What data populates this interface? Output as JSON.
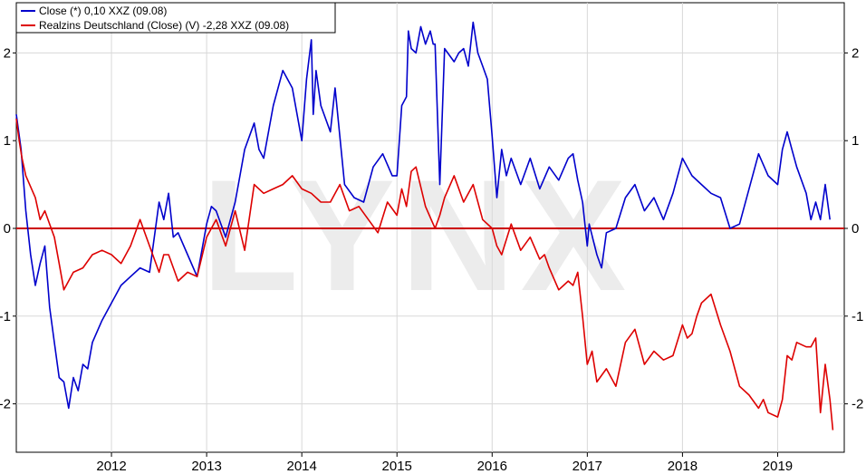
{
  "watermark": "LYNX",
  "colors": {
    "series_blue": "#0000cc",
    "series_red": "#dd0000",
    "zero_line": "#cc0000"
  },
  "chart_data": {
    "type": "line",
    "title": "",
    "xlabel": "",
    "ylabel": "",
    "xlim": [
      2011.0,
      2019.7
    ],
    "ylim": [
      -2.5,
      2.5
    ],
    "grid": true,
    "legend_position": "top-left",
    "x_ticks": [
      {
        "label": "2012",
        "value": 2012
      },
      {
        "label": "2013",
        "value": 2013
      },
      {
        "label": "2014",
        "value": 2014
      },
      {
        "label": "2015",
        "value": 2015
      },
      {
        "label": "2016",
        "value": 2016
      },
      {
        "label": "2017",
        "value": 2017
      },
      {
        "label": "2018",
        "value": 2018
      },
      {
        "label": "2019",
        "value": 2019
      }
    ],
    "y_ticks": [
      {
        "label": "2",
        "value": 2
      },
      {
        "label": "1",
        "value": 1
      },
      {
        "label": "0",
        "value": 0
      },
      {
        "label": "-1",
        "value": -1
      },
      {
        "label": "-2",
        "value": -2
      }
    ],
    "series": [
      {
        "name": "Close (*) 0,10 XXZ (09.08)",
        "color": "#0000cc",
        "x": [
          2011.0,
          2011.05,
          2011.1,
          2011.15,
          2011.2,
          2011.25,
          2011.3,
          2011.35,
          2011.4,
          2011.45,
          2011.5,
          2011.55,
          2011.6,
          2011.65,
          2011.7,
          2011.75,
          2011.8,
          2011.9,
          2012.0,
          2012.1,
          2012.2,
          2012.3,
          2012.4,
          2012.5,
          2012.55,
          2012.6,
          2012.65,
          2012.7,
          2012.8,
          2012.9,
          2013.0,
          2013.05,
          2013.1,
          2013.2,
          2013.3,
          2013.35,
          2013.4,
          2013.5,
          2013.55,
          2013.6,
          2013.7,
          2013.8,
          2013.9,
          2014.0,
          2014.05,
          2014.1,
          2014.12,
          2014.15,
          2014.2,
          2014.3,
          2014.35,
          2014.45,
          2014.55,
          2014.65,
          2014.75,
          2014.85,
          2014.95,
          2015.0,
          2015.05,
          2015.1,
          2015.12,
          2015.15,
          2015.2,
          2015.25,
          2015.3,
          2015.35,
          2015.38,
          2015.4,
          2015.45,
          2015.5,
          2015.6,
          2015.65,
          2015.7,
          2015.75,
          2015.8,
          2015.85,
          2015.9,
          2015.95,
          2016.0,
          2016.05,
          2016.1,
          2016.15,
          2016.2,
          2016.3,
          2016.4,
          2016.5,
          2016.6,
          2016.7,
          2016.8,
          2016.85,
          2016.9,
          2016.95,
          2017.0,
          2017.02,
          2017.1,
          2017.15,
          2017.2,
          2017.3,
          2017.4,
          2017.5,
          2017.6,
          2017.7,
          2017.8,
          2017.9,
          2018.0,
          2018.1,
          2018.2,
          2018.3,
          2018.4,
          2018.5,
          2018.6,
          2018.7,
          2018.8,
          2018.9,
          2019.0,
          2019.05,
          2019.1,
          2019.15,
          2019.2,
          2019.3,
          2019.35,
          2019.4,
          2019.45,
          2019.5,
          2019.55
        ],
        "y": [
          1.3,
          0.9,
          0.2,
          -0.3,
          -0.65,
          -0.4,
          -0.2,
          -0.9,
          -1.3,
          -1.7,
          -1.75,
          -2.05,
          -1.7,
          -1.85,
          -1.55,
          -1.6,
          -1.3,
          -1.05,
          -0.85,
          -0.65,
          -0.55,
          -0.45,
          -0.5,
          0.3,
          0.1,
          0.4,
          -0.1,
          -0.05,
          -0.3,
          -0.55,
          0.05,
          0.25,
          0.2,
          -0.1,
          0.3,
          0.6,
          0.9,
          1.2,
          0.9,
          0.8,
          1.4,
          1.8,
          1.6,
          1.0,
          1.7,
          2.15,
          1.3,
          1.8,
          1.4,
          1.1,
          1.6,
          0.5,
          0.35,
          0.3,
          0.7,
          0.85,
          0.6,
          0.6,
          1.4,
          1.5,
          2.25,
          2.05,
          2.0,
          2.3,
          2.1,
          2.25,
          2.1,
          2.1,
          0.5,
          2.05,
          1.9,
          2.0,
          2.05,
          1.85,
          2.35,
          2.0,
          1.85,
          1.7,
          1.05,
          0.35,
          0.9,
          0.6,
          0.8,
          0.5,
          0.8,
          0.45,
          0.7,
          0.55,
          0.8,
          0.85,
          0.55,
          0.3,
          -0.2,
          0.05,
          -0.3,
          -0.45,
          -0.05,
          0.0,
          0.35,
          0.5,
          0.2,
          0.35,
          0.1,
          0.4,
          0.8,
          0.6,
          0.5,
          0.4,
          0.35,
          0.0,
          0.05,
          0.45,
          0.85,
          0.6,
          0.5,
          0.9,
          1.1,
          0.9,
          0.7,
          0.4,
          0.1,
          0.3,
          0.1,
          0.5,
          0.1
        ]
      },
      {
        "name": "Realzins Deutschland (Close) (V) -2,28 XXZ (09.08)",
        "color": "#dd0000",
        "x": [
          2011.0,
          2011.03,
          2011.06,
          2011.1,
          2011.2,
          2011.25,
          2011.3,
          2011.4,
          2011.45,
          2011.5,
          2011.6,
          2011.7,
          2011.8,
          2011.9,
          2012.0,
          2012.1,
          2012.2,
          2012.3,
          2012.4,
          2012.5,
          2012.55,
          2012.6,
          2012.7,
          2012.8,
          2012.9,
          2013.0,
          2013.1,
          2013.2,
          2013.3,
          2013.4,
          2013.5,
          2013.6,
          2013.7,
          2013.8,
          2013.9,
          2014.0,
          2014.1,
          2014.2,
          2014.3,
          2014.4,
          2014.5,
          2014.6,
          2014.7,
          2014.8,
          2014.9,
          2015.0,
          2015.05,
          2015.1,
          2015.15,
          2015.2,
          2015.3,
          2015.4,
          2015.45,
          2015.5,
          2015.6,
          2015.7,
          2015.8,
          2015.9,
          2016.0,
          2016.05,
          2016.1,
          2016.2,
          2016.3,
          2016.4,
          2016.5,
          2016.55,
          2016.6,
          2016.7,
          2016.8,
          2016.85,
          2016.9,
          2016.95,
          2017.0,
          2017.05,
          2017.1,
          2017.2,
          2017.3,
          2017.4,
          2017.5,
          2017.6,
          2017.7,
          2017.8,
          2017.9,
          2018.0,
          2018.05,
          2018.1,
          2018.15,
          2018.2,
          2018.3,
          2018.4,
          2018.5,
          2018.6,
          2018.7,
          2018.8,
          2018.85,
          2018.9,
          2019.0,
          2019.05,
          2019.1,
          2019.15,
          2019.2,
          2019.3,
          2019.35,
          2019.4,
          2019.45,
          2019.5,
          2019.55,
          2019.58
        ],
        "y": [
          1.25,
          1.0,
          0.8,
          0.6,
          0.35,
          0.1,
          0.2,
          -0.1,
          -0.4,
          -0.7,
          -0.5,
          -0.45,
          -0.3,
          -0.25,
          -0.3,
          -0.4,
          -0.2,
          0.1,
          -0.2,
          -0.5,
          -0.3,
          -0.3,
          -0.6,
          -0.5,
          -0.55,
          -0.1,
          0.1,
          -0.2,
          0.2,
          -0.25,
          0.5,
          0.4,
          0.45,
          0.5,
          0.6,
          0.45,
          0.4,
          0.3,
          0.3,
          0.5,
          0.2,
          0.25,
          0.1,
          -0.05,
          0.3,
          0.15,
          0.45,
          0.25,
          0.65,
          0.7,
          0.25,
          0.0,
          0.15,
          0.35,
          0.6,
          0.3,
          0.5,
          0.1,
          0.0,
          -0.2,
          -0.3,
          0.05,
          -0.25,
          -0.1,
          -0.35,
          -0.3,
          -0.45,
          -0.7,
          -0.6,
          -0.65,
          -0.5,
          -1.0,
          -1.55,
          -1.4,
          -1.75,
          -1.6,
          -1.8,
          -1.3,
          -1.15,
          -1.55,
          -1.4,
          -1.5,
          -1.45,
          -1.1,
          -1.25,
          -1.2,
          -1.0,
          -0.85,
          -0.75,
          -1.1,
          -1.4,
          -1.8,
          -1.9,
          -2.05,
          -1.95,
          -2.1,
          -2.15,
          -1.95,
          -1.45,
          -1.5,
          -1.3,
          -1.35,
          -1.35,
          -1.25,
          -2.1,
          -1.55,
          -1.95,
          -2.3
        ]
      }
    ]
  }
}
